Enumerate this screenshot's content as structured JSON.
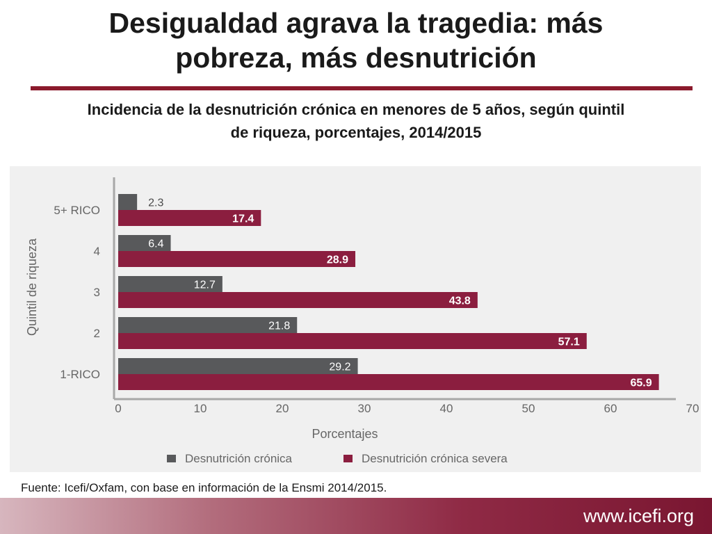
{
  "slide": {
    "title_line1": "Desigualdad agrava la tragedia: más",
    "title_line2": "pobreza, más desnutrición",
    "source": "Fuente: Icefi/Oxfam, con base en información de la Ensmi 2014/2015.",
    "footer_url": "www.icefi.org"
  },
  "colors": {
    "accent_rule": "#8b1a2c",
    "series_cronica": "#58595b",
    "series_severa": "#8b1e3f"
  },
  "chart_data": {
    "type": "bar",
    "orientation": "horizontal",
    "title_line1": "Incidencia de la desnutrición crónica en menores de 5 años, según quintil",
    "title_line2": "de riqueza, porcentajes, 2014/2015",
    "xlabel": "Porcentajes",
    "ylabel": "Quintil de riqueza",
    "categories": [
      "5+ RICO",
      "4",
      "3",
      "2",
      "1-RICO"
    ],
    "series": [
      {
        "name": "Desnutrición crónica",
        "values": [
          2.3,
          6.4,
          12.7,
          21.8,
          29.2
        ]
      },
      {
        "name": "Desnutrición crónica severa",
        "values": [
          17.4,
          28.9,
          43.8,
          57.1,
          65.9
        ]
      }
    ],
    "value_labels": [
      [
        "2.3",
        "6.4",
        "12.7",
        "21.8",
        "29.2"
      ],
      [
        "17.4",
        "28.9",
        "43.8",
        "57.1",
        "65.9"
      ]
    ],
    "xlim": [
      0,
      70
    ],
    "xticks": [
      0,
      10,
      20,
      30,
      40,
      50,
      60,
      70
    ],
    "xtick_labels": [
      "0",
      "10",
      "20",
      "30",
      "40",
      "50",
      "60",
      "70"
    ],
    "grid": false,
    "legend_position": "bottom"
  }
}
